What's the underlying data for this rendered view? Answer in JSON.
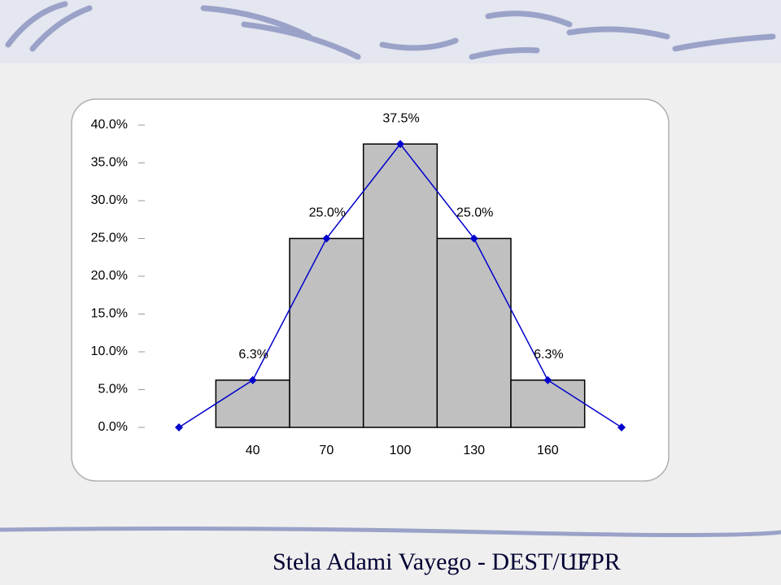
{
  "chart_data": {
    "type": "histogram",
    "bins": [
      25,
      55,
      85,
      115,
      145,
      175
    ],
    "values": [
      6.25,
      25,
      37.5,
      25,
      6.25
    ],
    "value_labels": [
      "6.3%",
      "25.0%",
      "37.5%",
      "25.0%",
      "6.3%"
    ],
    "color": "#c0c0c0",
    "line": {
      "type": "line",
      "x": [
        10,
        40,
        70,
        100,
        130,
        160,
        190
      ],
      "values": [
        0,
        6.25,
        25,
        37.5,
        25,
        6.25,
        0
      ],
      "color": "#0000cc"
    },
    "xlim": [
      10,
      190
    ],
    "xticks": [
      40,
      70,
      100,
      130,
      160
    ],
    "ylim": [
      0,
      40
    ],
    "yticks": [
      {
        "value": 0,
        "label": "0.0%"
      },
      {
        "value": 5,
        "label": "5.0%"
      },
      {
        "value": 10,
        "label": "10.0%"
      },
      {
        "value": 15,
        "label": "15.0%"
      },
      {
        "value": 20,
        "label": "20.0%"
      },
      {
        "value": 25,
        "label": "25.0%"
      },
      {
        "value": 30,
        "label": "30.0%"
      },
      {
        "value": 35,
        "label": "35.0%"
      },
      {
        "value": 40,
        "label": "40.0%"
      }
    ]
  },
  "footer": "Stela Adami Vayego - DEST/UFPR",
  "page_number": "17"
}
